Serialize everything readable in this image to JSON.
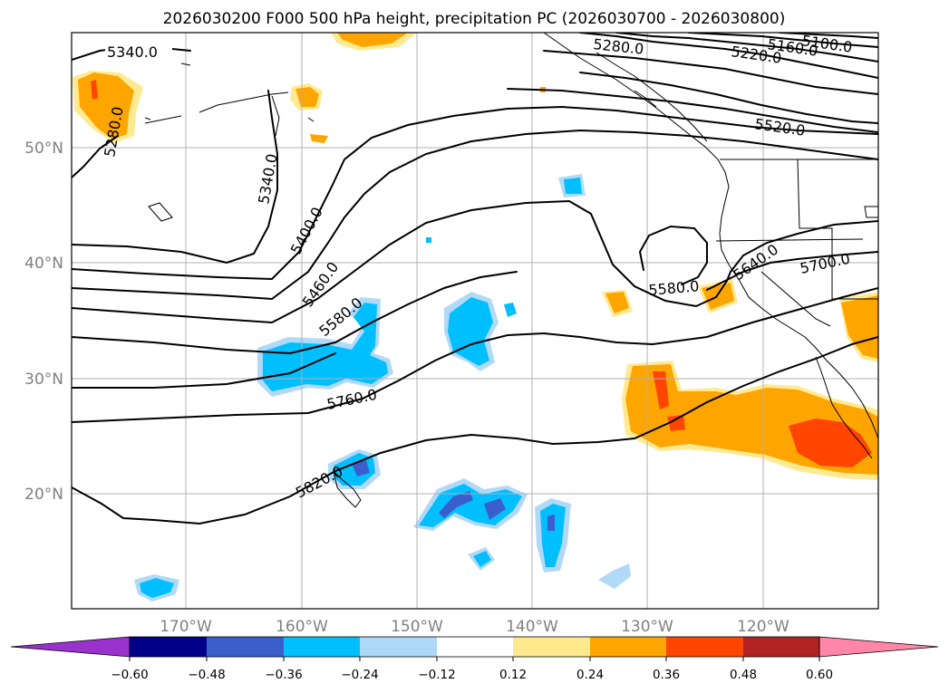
{
  "title": "2026030200 F000 500 hPa height, precipitation PC (2026030700 - 2026030800)",
  "map": {
    "lat_labels": [
      "50°N",
      "40°N",
      "30°N",
      "20°N"
    ],
    "lon_labels": [
      "170°W",
      "160°W",
      "150°W",
      "140°W",
      "130°W",
      "120°W"
    ],
    "contour_labels": [
      "5340.0",
      "5280.0",
      "5340.0",
      "5400.0",
      "5460.0",
      "5580.0",
      "5760.0",
      "5820.0",
      "5280.0",
      "5220.0",
      "5160.0",
      "5100.0",
      "5520.0",
      "5580.0",
      "5640.0",
      "5700.0"
    ]
  },
  "colorbar": {
    "ticks": [
      "−0.60",
      "−0.48",
      "−0.36",
      "−0.24",
      "−0.12",
      "0.12",
      "0.24",
      "0.36",
      "0.48",
      "0.60"
    ],
    "colors": [
      "#9932cc",
      "#00008b",
      "#3a5fcd",
      "#00bfff",
      "#add8f7",
      "#ffffff",
      "#ffe98c",
      "#ffa500",
      "#ff4500",
      "#b22222",
      "#ff86a8"
    ]
  }
}
